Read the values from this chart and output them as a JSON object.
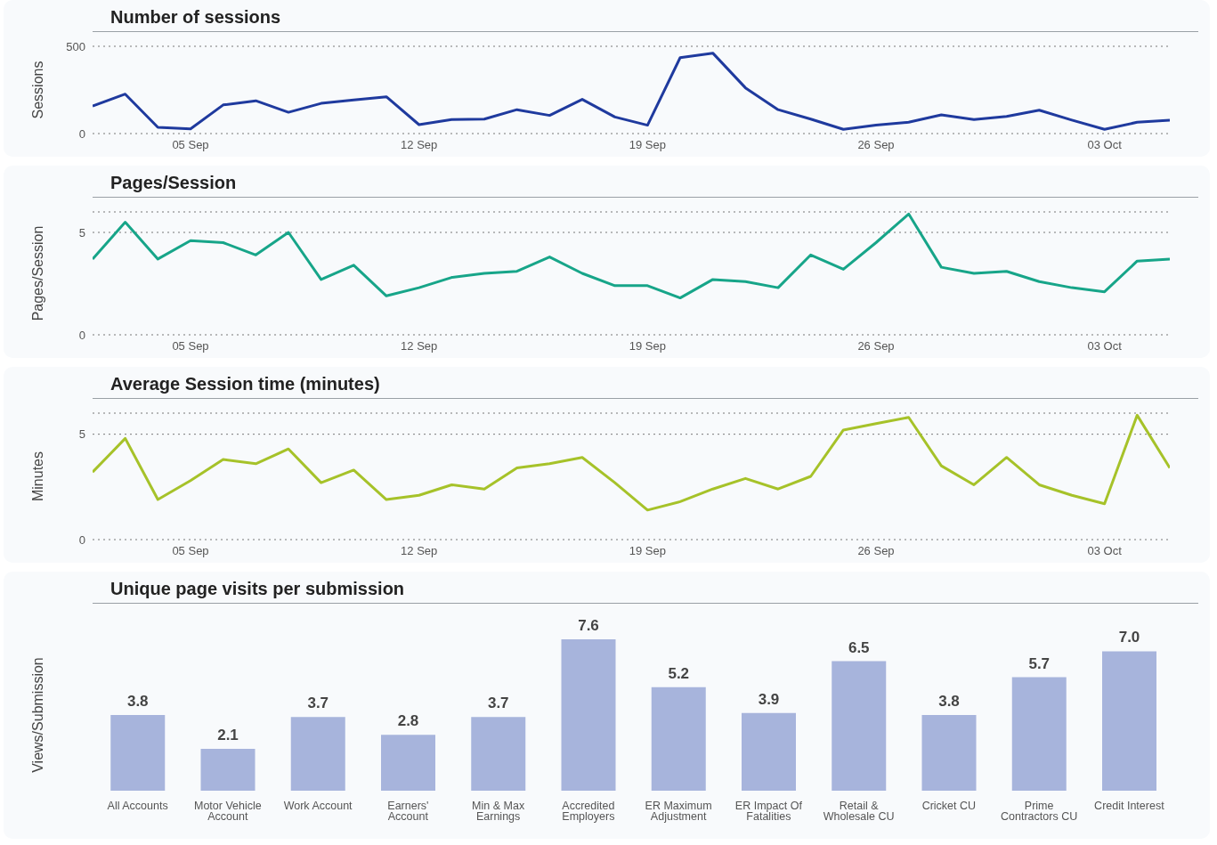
{
  "chart_data": [
    {
      "type": "line",
      "title": "Number of sessions",
      "ylabel": "Sessions",
      "color": "#1f3a9e",
      "grid": "y",
      "ylim": [
        0,
        500
      ],
      "yticks": [
        0,
        500
      ],
      "xlim": [
        "--09-02",
        "--10-05"
      ],
      "xticks": [
        {
          "value": "--09-05",
          "label": "05 Sep"
        },
        {
          "value": "--09-12",
          "label": "12 Sep"
        },
        {
          "value": "--09-19",
          "label": "19 Sep"
        },
        {
          "value": "--09-26",
          "label": "26 Sep"
        },
        {
          "value": "--10-03",
          "label": "03 Oct"
        }
      ],
      "x": [
        "--09-02",
        "--09-03",
        "--09-04",
        "--09-05",
        "--09-06",
        "--09-07",
        "--09-08",
        "--09-09",
        "--09-10",
        "--09-11",
        "--09-12",
        "--09-13",
        "--09-14",
        "--09-15",
        "--09-16",
        "--09-17",
        "--09-18",
        "--09-19",
        "--09-20",
        "--09-21",
        "--09-22",
        "--09-23",
        "--09-24",
        "--09-25",
        "--09-26",
        "--09-27",
        "--09-28",
        "--09-29",
        "--09-30",
        "--10-01",
        "--10-02",
        "--10-03",
        "--10-04",
        "--10-05"
      ],
      "values": [
        158,
        226,
        36,
        27,
        164,
        188,
        122,
        173,
        193,
        211,
        51,
        80,
        83,
        137,
        104,
        196,
        95,
        48,
        435,
        461,
        262,
        137,
        83,
        24,
        48,
        65,
        107,
        80,
        98,
        134,
        77,
        24,
        65,
        77
      ]
    },
    {
      "type": "line",
      "title": "Pages/Session",
      "ylabel": "Pages/Session",
      "color": "#17a589",
      "grid": "y",
      "ylim": [
        0,
        6
      ],
      "yticks": [
        0,
        5
      ],
      "xlim": [
        "--09-02",
        "--10-05"
      ],
      "xticks": [
        {
          "value": "--09-05",
          "label": "05 Sep"
        },
        {
          "value": "--09-12",
          "label": "12 Sep"
        },
        {
          "value": "--09-19",
          "label": "19 Sep"
        },
        {
          "value": "--09-26",
          "label": "26 Sep"
        },
        {
          "value": "--10-03",
          "label": "03 Oct"
        }
      ],
      "x": [
        "--09-02",
        "--09-03",
        "--09-04",
        "--09-05",
        "--09-06",
        "--09-07",
        "--09-08",
        "--09-09",
        "--09-10",
        "--09-11",
        "--09-12",
        "--09-13",
        "--09-14",
        "--09-15",
        "--09-16",
        "--09-17",
        "--09-18",
        "--09-19",
        "--09-20",
        "--09-21",
        "--09-22",
        "--09-23",
        "--09-24",
        "--09-25",
        "--09-26",
        "--09-27",
        "--09-28",
        "--09-29",
        "--09-30",
        "--10-01",
        "--10-02",
        "--10-03",
        "--10-04",
        "--10-05"
      ],
      "values": [
        3.7,
        5.5,
        3.7,
        4.6,
        4.5,
        3.9,
        5.0,
        2.7,
        3.4,
        1.9,
        2.3,
        2.8,
        3.0,
        3.1,
        3.8,
        3.0,
        2.4,
        2.4,
        1.8,
        2.7,
        2.6,
        2.3,
        3.9,
        3.2,
        4.5,
        5.9,
        3.3,
        3.0,
        3.1,
        2.6,
        2.3,
        2.1,
        3.6,
        3.7
      ]
    },
    {
      "type": "line",
      "title": "Average Session time (minutes)",
      "ylabel": "Minutes",
      "color": "#a6c229",
      "grid": "y",
      "ylim": [
        0,
        6
      ],
      "yticks": [
        0,
        5
      ],
      "xlim": [
        "--09-02",
        "--10-05"
      ],
      "xticks": [
        {
          "value": "--09-05",
          "label": "05 Sep"
        },
        {
          "value": "--09-12",
          "label": "12 Sep"
        },
        {
          "value": "--09-19",
          "label": "19 Sep"
        },
        {
          "value": "--09-26",
          "label": "26 Sep"
        },
        {
          "value": "--10-03",
          "label": "03 Oct"
        }
      ],
      "x": [
        "--09-02",
        "--09-03",
        "--09-04",
        "--09-05",
        "--09-06",
        "--09-07",
        "--09-08",
        "--09-09",
        "--09-10",
        "--09-11",
        "--09-12",
        "--09-13",
        "--09-14",
        "--09-15",
        "--09-16",
        "--09-17",
        "--09-18",
        "--09-19",
        "--09-20",
        "--09-21",
        "--09-22",
        "--09-23",
        "--09-24",
        "--09-25",
        "--09-26",
        "--09-27",
        "--09-28",
        "--09-29",
        "--09-30",
        "--10-01",
        "--10-02",
        "--10-03",
        "--10-04",
        "--10-05"
      ],
      "values": [
        3.2,
        4.8,
        1.9,
        2.8,
        3.8,
        3.6,
        4.3,
        2.7,
        3.3,
        1.9,
        2.1,
        2.6,
        2.4,
        3.4,
        3.6,
        3.9,
        2.7,
        1.4,
        1.8,
        2.4,
        2.9,
        2.4,
        3.0,
        5.2,
        5.5,
        5.8,
        3.5,
        2.6,
        3.9,
        2.6,
        2.1,
        1.7,
        5.9,
        3.4
      ]
    },
    {
      "type": "bar",
      "title": "Unique page visits per submission",
      "ylabel": "Views/Submission",
      "color": "#a7b4dc",
      "categories": [
        "All Accounts",
        "Motor Vehicle Account",
        "Work Account",
        "Earners' Account",
        "Min & Max Earnings",
        "Accredited Employers",
        "ER Maximum Adjustment",
        "ER Impact Of Fatalities",
        "Retail & Wholesale CU",
        "Cricket CU",
        "Prime Contractors CU",
        "Credit Interest"
      ],
      "values": [
        3.8,
        2.1,
        3.7,
        2.8,
        3.7,
        7.6,
        5.2,
        3.9,
        6.5,
        3.8,
        5.7,
        7.0
      ],
      "value_labels": [
        "3.8",
        "2.1",
        "3.7",
        "2.8",
        "3.7",
        "7.6",
        "5.2",
        "3.9",
        "6.5",
        "3.8",
        "5.7",
        "7.0"
      ]
    }
  ]
}
